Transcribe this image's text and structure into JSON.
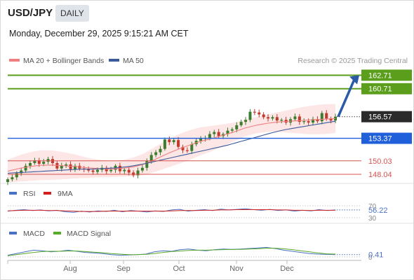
{
  "header": {
    "symbol": "USD/JPY",
    "timeframe": "DAILY",
    "timestamp": "Monday, December 29, 2025 9:15:21 AM CET"
  },
  "legend": {
    "ma20": "MA 20 + Bollinger Bands",
    "ma50": "MA 50",
    "credit": "Research © 2025 Trading Central"
  },
  "colors": {
    "up_candle": "#3a7d2c",
    "down_candle": "#c0392b",
    "ma20": "#f08080",
    "ma50": "#3a5a9a",
    "bollinger_fill": "#fde2e2",
    "target_green": "#5a9e1c",
    "pivot_blue": "#1f5fd9",
    "support_red": "#d9534f",
    "arrow": "#2b5aa8",
    "current_label": "#2a2a2a",
    "rsi": "#4a72c4",
    "rsi_ma": "#d02020",
    "macd": "#4a72c4",
    "macd_signal": "#5aaa2a"
  },
  "chart_data": [
    {
      "type": "candlestick",
      "title": "USD/JPY",
      "timeframe": "DAILY",
      "xlabels": [
        "Aug",
        "Sep",
        "Oct",
        "Nov",
        "Dec"
      ],
      "ylim": [
        146.9,
        164.0
      ],
      "current_price": 156.57,
      "levels": [
        {
          "label": "162.71",
          "value": 162.71,
          "kind": "resistance"
        },
        {
          "label": "160.71",
          "value": 160.71,
          "kind": "resistance"
        },
        {
          "label": "153.37",
          "value": 153.37,
          "kind": "pivot"
        },
        {
          "label": "150.03",
          "value": 150.03,
          "kind": "support"
        },
        {
          "label": "148.04",
          "value": 148.04,
          "kind": "support"
        }
      ],
      "current_label": "156.57",
      "close_path": [
        147.3,
        147.6,
        148.2,
        148.6,
        149.3,
        149.7,
        150.1,
        149.6,
        149.9,
        150.3,
        149.7,
        148.9,
        149.3,
        149.5,
        148.8,
        149.3,
        148.9,
        148.8,
        148.6,
        148.4,
        148.7,
        149.0,
        148.5,
        148.7,
        149.3,
        148.5,
        148.7,
        148.3,
        147.9,
        148.6,
        149.0,
        150.0,
        150.9,
        151.3,
        151.8,
        153.2,
        152.8,
        153.1,
        152.1,
        151.6,
        151.5,
        152.5,
        153.0,
        153.3,
        153.4,
        154.0,
        154.3,
        153.7,
        154.0,
        154.5,
        154.7,
        155.3,
        155.8,
        156.1,
        157.3,
        157.2,
        156.9,
        156.5,
        156.3,
        156.5,
        156.0,
        156.1,
        155.7,
        156.2,
        156.6,
        155.8,
        155.9,
        155.7,
        156.2,
        155.9,
        157.1,
        156.3,
        156.0,
        156.57
      ],
      "ma20_path": [
        148.5,
        148.9,
        149.2,
        149.4,
        149.4,
        149.3,
        149.2,
        149.0,
        148.9,
        148.8,
        148.9,
        149.1,
        149.5,
        150.2,
        151.0,
        151.7,
        152.3,
        152.9,
        153.3,
        153.8,
        154.3,
        154.9,
        155.3,
        155.6,
        155.8,
        155.9,
        156.0,
        156.1,
        156.2,
        156.3
      ],
      "ma50_path": [
        148.2,
        148.3,
        148.4,
        148.5,
        148.6,
        148.7,
        148.8,
        148.8,
        148.9,
        149.0,
        149.2,
        149.5,
        149.9,
        150.3,
        150.7,
        151.1,
        151.5,
        151.9,
        152.3,
        152.8,
        153.3,
        153.8,
        154.3,
        154.7,
        155.0,
        155.3,
        155.6,
        155.9
      ],
      "target": {
        "from": 156.57,
        "to": 162.71
      }
    },
    {
      "type": "line",
      "title": "RSI",
      "legend": [
        "RSI",
        "9MA"
      ],
      "ylim": [
        30,
        70
      ],
      "yticks": [
        "70",
        "30"
      ],
      "current_label": "56.22",
      "series": [
        {
          "name": "RSI",
          "values": [
            52,
            55,
            57,
            54,
            56,
            53,
            55,
            50,
            48,
            52,
            49,
            53,
            51,
            55,
            50,
            54,
            52,
            49,
            53,
            51,
            56,
            58,
            52,
            55,
            57,
            54,
            59,
            56,
            58,
            60,
            57,
            55,
            58,
            54,
            56,
            52,
            55,
            53,
            57,
            54,
            56.22
          ]
        },
        {
          "name": "9MA",
          "values": [
            53,
            54,
            55,
            55,
            55,
            54,
            54,
            53,
            52,
            51,
            51,
            51,
            52,
            52,
            52,
            52,
            52,
            52,
            52,
            52,
            53,
            54,
            54,
            54,
            55,
            55,
            56,
            56,
            57,
            57,
            57,
            57,
            57,
            56,
            56,
            55,
            55,
            54,
            55,
            55,
            55
          ]
        }
      ]
    },
    {
      "type": "line",
      "title": "MACD",
      "legend": [
        "MACD",
        "MACD Signal"
      ],
      "ylim": [
        0,
        3
      ],
      "yticks": [
        "0"
      ],
      "current_label": "0.41",
      "series": [
        {
          "name": "MACD",
          "values": [
            0.3,
            0.6,
            0.9,
            1.2,
            1.1,
            0.9,
            1.0,
            1.2,
            1.0,
            0.8,
            0.7,
            0.6,
            0.4,
            0.3,
            0.35,
            0.4,
            0.5,
            0.9,
            1.1,
            1.0,
            1.3,
            1.4,
            1.2,
            1.1,
            1.3,
            1.4,
            1.35,
            1.4,
            1.5,
            1.6,
            1.7,
            1.5,
            1.2,
            1.0,
            0.8,
            0.6,
            0.5,
            0.45,
            0.41
          ]
        },
        {
          "name": "MACD Signal",
          "values": [
            0.2,
            0.4,
            0.6,
            0.8,
            0.95,
            1.0,
            1.0,
            1.05,
            1.05,
            0.95,
            0.85,
            0.75,
            0.6,
            0.5,
            0.4,
            0.4,
            0.45,
            0.6,
            0.8,
            0.95,
            1.05,
            1.15,
            1.2,
            1.2,
            1.25,
            1.3,
            1.32,
            1.35,
            1.4,
            1.45,
            1.55,
            1.55,
            1.45,
            1.3,
            1.1,
            0.9,
            0.7,
            0.55,
            0.5
          ]
        }
      ]
    }
  ]
}
